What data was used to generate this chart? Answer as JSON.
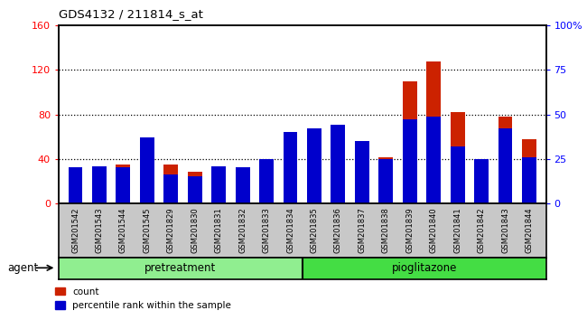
{
  "title": "GDS4132 / 211814_s_at",
  "categories": [
    "GSM201542",
    "GSM201543",
    "GSM201544",
    "GSM201545",
    "GSM201829",
    "GSM201830",
    "GSM201831",
    "GSM201832",
    "GSM201833",
    "GSM201834",
    "GSM201835",
    "GSM201836",
    "GSM201837",
    "GSM201838",
    "GSM201839",
    "GSM201840",
    "GSM201841",
    "GSM201842",
    "GSM201843",
    "GSM201844"
  ],
  "count_values": [
    32,
    33,
    35,
    57,
    35,
    28,
    30,
    30,
    40,
    45,
    60,
    65,
    45,
    41,
    110,
    128,
    82,
    40,
    78,
    58
  ],
  "percentile_values": [
    20,
    21,
    20,
    37,
    16,
    15,
    21,
    20,
    25,
    40,
    42,
    44,
    35,
    25,
    47,
    49,
    32,
    25,
    42,
    26
  ],
  "pretreatment_count": 10,
  "groups": [
    "pretreatment",
    "pioglitazone"
  ],
  "pretreatment_color": "#90EE90",
  "pioglitazone_color": "#44DD44",
  "bar_color_red": "#CC2200",
  "bar_color_blue": "#0000CC",
  "ylim_left": [
    0,
    160
  ],
  "ylim_right": [
    0,
    100
  ],
  "yticks_left": [
    0,
    40,
    80,
    120,
    160
  ],
  "ytick_labels_right": [
    "0",
    "25",
    "50",
    "75",
    "100%"
  ],
  "agent_label": "agent",
  "legend_count": "count",
  "legend_percentile": "percentile rank within the sample",
  "tick_bg_color": "#C8C8C8"
}
